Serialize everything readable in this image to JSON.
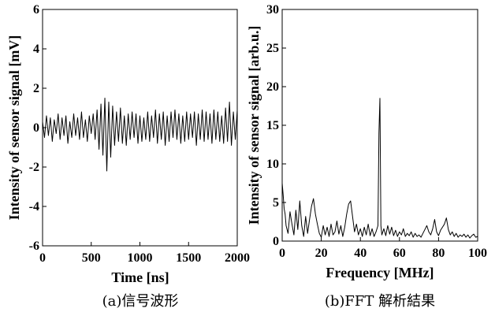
{
  "chart_data": [
    {
      "type": "line",
      "caption": "(a)信号波形",
      "xlabel": "Time [ns]",
      "ylabel": "Intensity of sensor signal [mV]",
      "xlim": [
        0,
        2000
      ],
      "ylim": [
        -6,
        6
      ],
      "x_ticks": [
        "0",
        "500",
        "1000",
        "1500",
        "2000"
      ],
      "y_ticks": [
        "-6",
        "-4",
        "-2",
        "0",
        "2",
        "4",
        "6"
      ],
      "grid": false,
      "series": [
        {
          "color": "#000000",
          "x": [
            0,
            20,
            40,
            60,
            80,
            100,
            120,
            140,
            160,
            180,
            200,
            220,
            240,
            260,
            280,
            300,
            320,
            340,
            360,
            380,
            400,
            420,
            440,
            460,
            480,
            500,
            520,
            540,
            560,
            580,
            600,
            620,
            640,
            660,
            680,
            700,
            720,
            740,
            760,
            780,
            800,
            820,
            840,
            860,
            880,
            900,
            920,
            940,
            960,
            980,
            1000,
            1020,
            1040,
            1060,
            1080,
            1100,
            1120,
            1140,
            1160,
            1180,
            1200,
            1220,
            1240,
            1260,
            1280,
            1300,
            1320,
            1340,
            1360,
            1380,
            1400,
            1420,
            1440,
            1460,
            1480,
            1500,
            1520,
            1540,
            1560,
            1580,
            1600,
            1620,
            1640,
            1660,
            1680,
            1700,
            1720,
            1740,
            1760,
            1780,
            1800,
            1820,
            1840,
            1860,
            1880,
            1900,
            1920,
            1940,
            1960,
            1980,
            2000
          ],
          "y": [
            0.3,
            -0.5,
            0.6,
            -0.4,
            0.5,
            -0.7,
            0.4,
            -0.3,
            0.7,
            -0.6,
            0.5,
            -0.4,
            0.6,
            -0.8,
            0.3,
            -0.5,
            0.7,
            -0.4,
            0.5,
            -0.6,
            0.8,
            -0.5,
            0.4,
            -0.7,
            0.6,
            -0.3,
            0.7,
            -0.6,
            0.9,
            -1.1,
            1.2,
            -1.4,
            1.5,
            -2.2,
            1.3,
            -1.5,
            1.1,
            -0.9,
            0.8,
            -0.7,
            1.0,
            -0.8,
            0.6,
            -0.9,
            0.7,
            -0.6,
            0.8,
            -0.5,
            0.7,
            -0.8,
            0.6,
            -0.7,
            0.5,
            -0.6,
            0.8,
            -0.7,
            0.6,
            -0.5,
            0.9,
            -0.8,
            0.7,
            -0.6,
            0.8,
            -0.9,
            0.6,
            -0.7,
            0.8,
            -0.5,
            0.9,
            -0.6,
            0.7,
            -0.8,
            0.6,
            -0.7,
            0.8,
            -0.6,
            0.7,
            -0.5,
            0.8,
            -0.9,
            0.7,
            -0.6,
            0.9,
            -0.7,
            0.8,
            -0.6,
            0.7,
            -0.8,
            0.9,
            -0.6,
            0.8,
            -0.7,
            0.6,
            -0.8,
            1.0,
            -0.7,
            1.3,
            -0.9,
            0.8,
            -0.6,
            0.9
          ]
        }
      ]
    },
    {
      "type": "line",
      "caption": "(b)FFT 解析結果",
      "xlabel": "Frequency [MHz]",
      "ylabel": "Intensity of sensor signal [arb.u.]",
      "xlim": [
        0,
        100
      ],
      "ylim": [
        0,
        30
      ],
      "x_ticks": [
        "0",
        "20",
        "40",
        "60",
        "80",
        "100"
      ],
      "y_ticks": [
        "0",
        "5",
        "10",
        "15",
        "20",
        "25",
        "30"
      ],
      "grid": false,
      "series": [
        {
          "color": "#000000",
          "x": [
            0,
            0.5,
            1,
            1.5,
            2,
            3,
            4,
            5,
            6,
            7,
            8,
            9,
            10,
            11,
            12,
            13,
            14,
            15,
            16,
            17,
            18,
            19,
            20,
            21,
            22,
            23,
            24,
            25,
            26,
            27,
            28,
            29,
            30,
            31,
            32,
            33,
            34,
            35,
            36,
            37,
            38,
            39,
            40,
            41,
            42,
            43,
            44,
            45,
            46,
            47,
            48,
            49,
            49.5,
            50,
            50.5,
            51,
            52,
            53,
            54,
            55,
            56,
            57,
            58,
            59,
            60,
            61,
            62,
            63,
            64,
            65,
            66,
            67,
            68,
            69,
            70,
            71,
            72,
            73,
            74,
            75,
            76,
            77,
            78,
            79,
            80,
            81,
            82,
            83,
            84,
            85,
            86,
            87,
            88,
            89,
            90,
            91,
            92,
            93,
            94,
            95,
            96,
            97,
            98,
            99,
            100
          ],
          "y": [
            7.5,
            6.0,
            4.2,
            3.5,
            2.0,
            1.0,
            3.8,
            2.2,
            0.8,
            4.0,
            1.5,
            5.2,
            2.0,
            0.6,
            3.2,
            1.0,
            2.8,
            4.5,
            5.5,
            3.5,
            2.2,
            1.0,
            0.5,
            2.0,
            0.8,
            1.8,
            0.6,
            2.2,
            0.8,
            1.2,
            2.6,
            0.9,
            2.0,
            0.6,
            1.8,
            3.5,
            4.8,
            5.2,
            3.2,
            1.2,
            2.2,
            0.8,
            1.6,
            0.6,
            1.8,
            0.8,
            2.2,
            0.7,
            1.6,
            0.6,
            1.2,
            2.0,
            14.0,
            18.5,
            2.0,
            0.8,
            1.6,
            0.7,
            2.0,
            0.9,
            1.8,
            0.7,
            1.4,
            0.6,
            1.2,
            0.8,
            1.6,
            0.6,
            1.0,
            0.7,
            1.2,
            0.5,
            1.0,
            0.6,
            0.8,
            0.5,
            1.0,
            1.5,
            2.0,
            1.2,
            0.8,
            1.6,
            2.8,
            1.2,
            0.7,
            1.4,
            1.8,
            2.2,
            3.0,
            1.5,
            0.8,
            1.2,
            0.6,
            1.0,
            0.5,
            0.8,
            0.6,
            0.9,
            0.5,
            0.8,
            0.4,
            0.7,
            0.9,
            0.5,
            0.6
          ]
        }
      ]
    }
  ]
}
